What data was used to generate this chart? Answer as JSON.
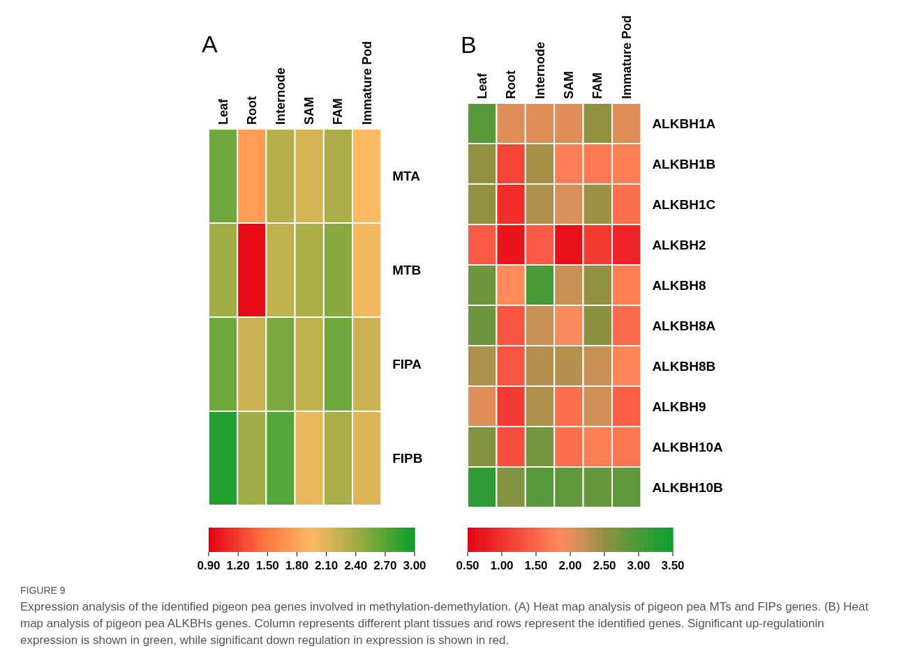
{
  "chart_data": [
    {
      "type": "heatmap",
      "title": "A",
      "categories": [
        "Leaf",
        "Root",
        "Internode",
        "SAM",
        "FAM",
        "Immature Pod"
      ],
      "y_categories": [
        "MTA",
        "MTB",
        "FIPA",
        "FIPB"
      ],
      "cells": [
        [
          2.6,
          1.75,
          2.3,
          2.15,
          2.35,
          1.95
        ],
        [
          2.4,
          0.95,
          2.25,
          2.35,
          2.5,
          2.0
        ],
        [
          2.6,
          2.2,
          2.55,
          2.25,
          2.6,
          2.2
        ],
        [
          2.9,
          2.4,
          2.7,
          2.05,
          2.35,
          2.1
        ]
      ],
      "clim": [
        0.9,
        3.0
      ],
      "cticks": [
        {
          "value": 0.9,
          "label": "0.90"
        },
        {
          "value": 1.2,
          "label": "1.20"
        },
        {
          "value": 1.5,
          "label": "1.50"
        },
        {
          "value": 1.8,
          "label": "1.80"
        },
        {
          "value": 2.1,
          "label": "2.10"
        },
        {
          "value": 2.4,
          "label": "2.40"
        },
        {
          "value": 2.7,
          "label": "2.70"
        },
        {
          "value": 3.0,
          "label": "3.00"
        }
      ]
    },
    {
      "type": "heatmap",
      "title": "B",
      "categories": [
        "Leaf",
        "Root",
        "Internode",
        "SAM",
        "FAM",
        "Immature Pod"
      ],
      "y_categories": [
        "ALKBH1A",
        "ALKBH1B",
        "ALKBH1C",
        "ALKBH2",
        "ALKBH8",
        "ALKBH8A",
        "ALKBH8B",
        "ALKBH9",
        "ALKBH10A",
        "ALKBH10B"
      ],
      "cells": [
        [
          2.9,
          2.05,
          2.05,
          2.05,
          2.5,
          2.05
        ],
        [
          2.5,
          1.2,
          2.4,
          1.75,
          1.7,
          1.75
        ],
        [
          2.5,
          0.95,
          2.35,
          2.1,
          2.45,
          1.6
        ],
        [
          1.4,
          0.7,
          1.4,
          0.65,
          1.1,
          0.85
        ],
        [
          2.75,
          1.85,
          3.0,
          2.2,
          2.5,
          1.75
        ],
        [
          2.75,
          1.35,
          2.2,
          1.9,
          2.55,
          1.55
        ],
        [
          2.35,
          1.35,
          2.3,
          2.3,
          2.2,
          1.8
        ],
        [
          2.05,
          1.1,
          2.35,
          1.6,
          2.15,
          1.45
        ],
        [
          2.6,
          1.3,
          2.7,
          1.6,
          1.75,
          1.65
        ],
        [
          3.2,
          2.6,
          2.9,
          2.85,
          2.8,
          2.85
        ]
      ],
      "clim": [
        0.5,
        3.5
      ],
      "cticks": [
        {
          "value": 0.5,
          "label": "0.50"
        },
        {
          "value": 1.0,
          "label": "1.00"
        },
        {
          "value": 1.5,
          "label": "1.50"
        },
        {
          "value": 2.0,
          "label": "2.00"
        },
        {
          "value": 2.5,
          "label": "2.50"
        },
        {
          "value": 3.0,
          "label": "3.00"
        },
        {
          "value": 3.5,
          "label": "3.50"
        }
      ],
      "annotations": [
        "FIGURE 9",
        "Expression analysis of the identified pigeon pea genes involved in methylation-demethylation. (A) Heat map analysis of pigeon pea MTs and FIPs genes. (B) Heat map analysis of pigeon pea ALKBHs genes. Column represents different plant tissues and rows represent the identified genes. Significant up-regulationin expression is shown in green, while significant down regulation in expression is shown in red."
      ]
    }
  ]
}
